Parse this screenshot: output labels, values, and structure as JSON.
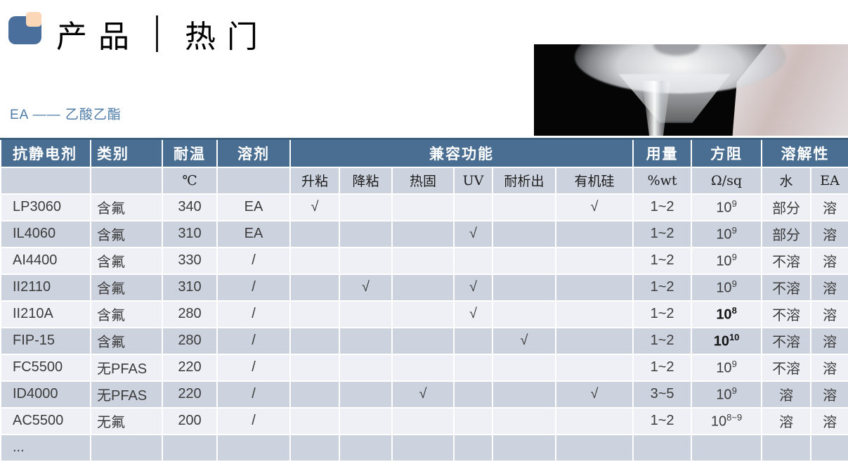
{
  "header": {
    "title_left": "产品",
    "title_right": "热门",
    "subtitle": "EA —— 乙酸乙酯"
  },
  "colors": {
    "header_bg": "#4a6e91",
    "header_top_border": "#3d5f7e",
    "row_dark": "#cdd3de",
    "row_light": "#eef0f5",
    "subtitle_blue": "#4d7ba7",
    "logo_blue": "#4a6f9c",
    "logo_peach": "#fbd7b8",
    "photo_bg": "#050505"
  },
  "table": {
    "columns": {
      "product": "抗静电剂",
      "category": "类别",
      "temp": "耐温",
      "solvent": "溶剂",
      "compat_group": "兼容功能",
      "dosage": "用量",
      "resistance": "方阻",
      "solubility_group": "溶解性"
    },
    "units": {
      "temp": "℃",
      "compat": [
        "升粘",
        "降粘",
        "热固",
        "UV",
        "耐析出",
        "有机硅"
      ],
      "dosage": "%wt",
      "resistance": "Ω/sq",
      "water": "水",
      "ea": "EA"
    },
    "rows": [
      {
        "name": "LP3060",
        "category": "含氟",
        "temp": "340",
        "solvent": "EA",
        "compat": [
          "√",
          "",
          "",
          "",
          "",
          "√"
        ],
        "dosage": "1~2",
        "res_base": "10",
        "res_exp": "9",
        "res_bold": false,
        "water": "部分",
        "ea": "溶"
      },
      {
        "name": "IL4060",
        "category": "含氟",
        "temp": "310",
        "solvent": "EA",
        "compat": [
          "",
          "",
          "",
          "√",
          "",
          ""
        ],
        "dosage": "1~2",
        "res_base": "10",
        "res_exp": "9",
        "res_bold": false,
        "water": "部分",
        "ea": "溶"
      },
      {
        "name": "AI4400",
        "category": "含氟",
        "temp": "330",
        "solvent": "/",
        "compat": [
          "",
          "",
          "",
          "",
          "",
          ""
        ],
        "dosage": "1~2",
        "res_base": "10",
        "res_exp": "9",
        "res_bold": false,
        "water": "不溶",
        "ea": "溶"
      },
      {
        "name": "II2110",
        "category": "含氟",
        "temp": "310",
        "solvent": "/",
        "compat": [
          "",
          "√",
          "",
          "√",
          "",
          ""
        ],
        "dosage": "1~2",
        "res_base": "10",
        "res_exp": "9",
        "res_bold": false,
        "water": "不溶",
        "ea": "溶"
      },
      {
        "name": "II210A",
        "category": "含氟",
        "temp": "280",
        "solvent": "/",
        "compat": [
          "",
          "",
          "",
          "√",
          "",
          ""
        ],
        "dosage": "1~2",
        "res_base": "10",
        "res_exp": "8",
        "res_bold": true,
        "water": "不溶",
        "ea": "溶"
      },
      {
        "name": "FIP-15",
        "category": "含氟",
        "temp": "280",
        "solvent": "/",
        "compat": [
          "",
          "",
          "",
          "",
          "√",
          ""
        ],
        "dosage": "1~2",
        "res_base": "10",
        "res_exp": "10",
        "res_bold": true,
        "water": "不溶",
        "ea": "溶"
      },
      {
        "name": "FC5500",
        "category": "无PFAS",
        "temp": "220",
        "solvent": "/",
        "compat": [
          "",
          "",
          "",
          "",
          "",
          ""
        ],
        "dosage": "1~2",
        "res_base": "10",
        "res_exp": "9",
        "res_bold": false,
        "water": "不溶",
        "ea": "溶"
      },
      {
        "name": "ID4000",
        "category": "无PFAS",
        "temp": "220",
        "solvent": "/",
        "compat": [
          "",
          "",
          "√",
          "",
          "",
          "√"
        ],
        "dosage": "3~5",
        "res_base": "10",
        "res_exp": "9",
        "res_bold": false,
        "water": "溶",
        "ea": "溶"
      },
      {
        "name": "AC5500",
        "category": "无氟",
        "temp": "200",
        "solvent": "/",
        "compat": [
          "",
          "",
          "",
          "",
          "",
          ""
        ],
        "dosage": "1~2",
        "res_base": "10",
        "res_exp": "8~9",
        "res_bold": false,
        "water": "溶",
        "ea": "溶"
      },
      {
        "name": "...",
        "category": "",
        "temp": "",
        "solvent": "",
        "compat": [
          "",
          "",
          "",
          "",
          "",
          ""
        ],
        "dosage": "",
        "res_base": "",
        "res_exp": "",
        "res_bold": false,
        "water": "",
        "ea": ""
      }
    ]
  }
}
